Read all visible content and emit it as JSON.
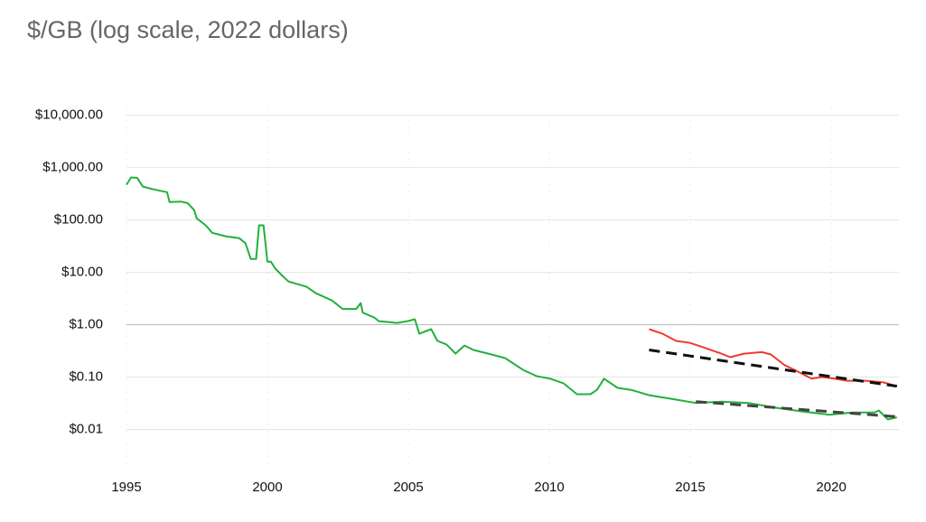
{
  "chart_data": {
    "type": "line",
    "title": "$/GB (log scale, 2022 dollars)",
    "log_y": true,
    "grid": true,
    "xlim": [
      1995,
      2022.4
    ],
    "xticks": [
      1995,
      2000,
      2005,
      2010,
      2015,
      2020
    ],
    "ylim": [
      0.002,
      30000
    ],
    "yticks": [
      {
        "value": 0.01,
        "label": "$0.01"
      },
      {
        "value": 0.1,
        "label": "$0.10"
      },
      {
        "value": 1,
        "label": "$1.00"
      },
      {
        "value": 10,
        "label": "$10.00"
      },
      {
        "value": 100,
        "label": "$100.00"
      },
      {
        "value": 1000,
        "label": "$1,000.00"
      },
      {
        "value": 10000,
        "label": "$10,000.00"
      }
    ],
    "series": [
      {
        "color": "#22b03c",
        "dashed": false,
        "x": [
          1995.0,
          1995.16,
          1995.38,
          1995.58,
          1995.96,
          1996.44,
          1996.53,
          1996.92,
          1997.17,
          1997.4,
          1997.49,
          1997.81,
          1998.04,
          1998.52,
          1999.0,
          1999.22,
          1999.41,
          1999.6,
          1999.7,
          1999.86,
          2000.0,
          2000.12,
          2000.27,
          2000.5,
          2000.75,
          2001.39,
          2001.71,
          2002.29,
          2002.67,
          2003.15,
          2003.31,
          2003.38,
          2003.79,
          2003.95,
          2004.27,
          2004.59,
          2004.97,
          2005.23,
          2005.39,
          2005.55,
          2005.81,
          2006.03,
          2006.35,
          2006.67,
          2006.99,
          2007.31,
          2007.95,
          2008.43,
          2009.07,
          2009.55,
          2010.03,
          2010.5,
          2010.98,
          2011.46,
          2011.69,
          2011.94,
          2012.42,
          2012.9,
          2013.54,
          2014.5,
          2015.2,
          2016.1,
          2017.06,
          2018.02,
          2018.98,
          2019.94,
          2020.74,
          2021.53,
          2021.69,
          2022.01,
          2022.33
        ],
        "values": [
          470,
          650,
          640,
          435,
          385,
          340,
          220,
          225,
          210,
          155,
          108,
          79,
          57,
          49,
          45,
          36,
          18,
          18,
          79,
          79,
          16,
          16,
          12,
          8.9,
          6.7,
          5.3,
          4,
          2.9,
          2,
          2,
          2.6,
          1.7,
          1.37,
          1.17,
          1.13,
          1.08,
          1.17,
          1.27,
          0.67,
          0.73,
          0.82,
          0.49,
          0.42,
          0.28,
          0.4,
          0.33,
          0.27,
          0.23,
          0.137,
          0.104,
          0.093,
          0.076,
          0.047,
          0.047,
          0.057,
          0.093,
          0.062,
          0.057,
          0.045,
          0.037,
          0.032,
          0.034,
          0.032,
          0.026,
          0.022,
          0.019,
          0.021,
          0.021,
          0.023,
          0.0155,
          0.017
        ]
      },
      {
        "color": "#f03a32",
        "dashed": false,
        "x": [
          2013.54,
          2014.02,
          2014.5,
          2014.98,
          2015.46,
          2016.1,
          2016.42,
          2016.9,
          2017.54,
          2017.86,
          2018.34,
          2018.82,
          2019.3,
          2019.68,
          2020.1,
          2020.58,
          2021.22,
          2021.85,
          2022.33
        ],
        "values": [
          0.82,
          0.67,
          0.49,
          0.45,
          0.37,
          0.28,
          0.24,
          0.28,
          0.3,
          0.27,
          0.17,
          0.127,
          0.093,
          0.1,
          0.093,
          0.085,
          0.085,
          0.079,
          0.067
        ]
      },
      {
        "color": "#111111",
        "dashed": true,
        "x": [
          2013.54,
          2022.33
        ],
        "values": [
          0.33,
          0.067
        ]
      },
      {
        "color": "#444444",
        "dashed": true,
        "x": [
          2015.2,
          2022.33
        ],
        "values": [
          0.034,
          0.0175
        ]
      }
    ]
  }
}
